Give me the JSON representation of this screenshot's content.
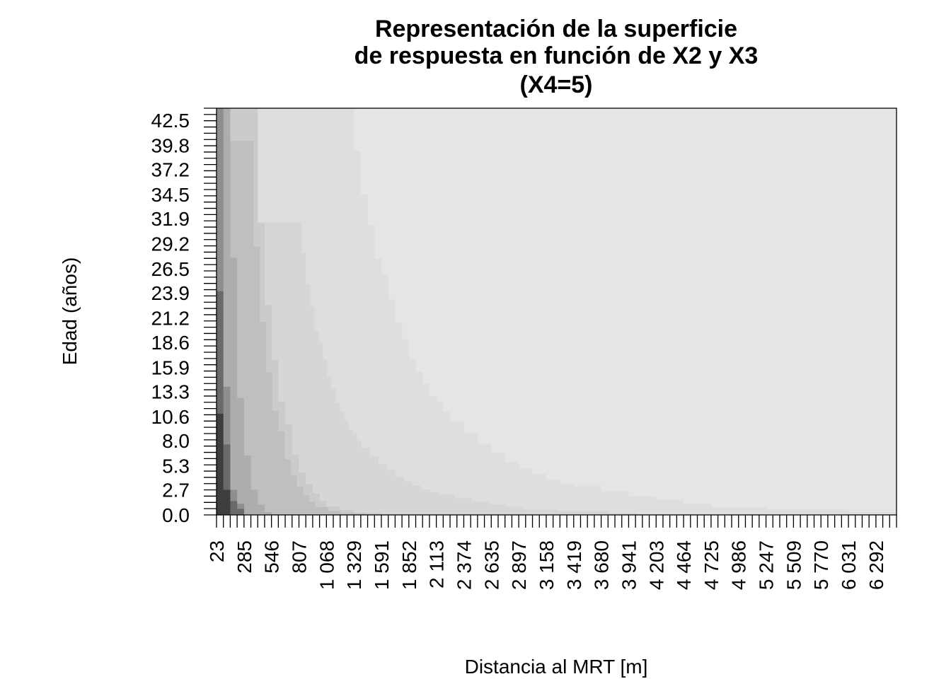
{
  "chart_data": {
    "type": "heatmap",
    "title": [
      "Representación de la superficie",
      "de respuesta en función de X2 y X3",
      "(X4=5)"
    ],
    "xlabel": "Distancia al MRT [m]",
    "ylabel": "Edad (años)",
    "x_tick_labels": [
      "23",
      "285",
      "546",
      "807",
      "1 068",
      "1 329",
      "1 591",
      "1 852",
      "2 113",
      "2 374",
      "2 635",
      "2 897",
      "3 158",
      "3 419",
      "3 680",
      "3 941",
      "4 203",
      "4 464",
      "4 725",
      "4 986",
      "5 247",
      "5 509",
      "5 770",
      "6 031",
      "6 292"
    ],
    "y_tick_labels": [
      "0.0",
      "2.7",
      "5.3",
      "8.0",
      "10.6",
      "13.3",
      "15.9",
      "18.6",
      "21.2",
      "23.9",
      "26.5",
      "29.2",
      "31.9",
      "34.5",
      "37.2",
      "39.8",
      "42.5"
    ],
    "xlim": [
      23,
      6488
    ],
    "ylim": [
      0,
      43.8
    ],
    "grid": false,
    "levels": [
      {
        "level": 1,
        "color": "#3e3e3e"
      },
      {
        "level": 2,
        "color": "#6a6a6a"
      },
      {
        "level": 3,
        "color": "#8e8e8e"
      },
      {
        "level": 4,
        "color": "#adadad"
      },
      {
        "level": 5,
        "color": "#bfbfbf"
      },
      {
        "level": 6,
        "color": "#cbcbcb"
      },
      {
        "level": 7,
        "color": "#d6d6d6"
      },
      {
        "level": 8,
        "color": "#dedede"
      },
      {
        "level": 9,
        "color": "#e5e5e5"
      }
    ],
    "level_boundaries": [
      {
        "between": "1-2",
        "points": [
          [
            23,
            10.9
          ],
          [
            88,
            10.9
          ],
          [
            88,
            2.7
          ],
          [
            154,
            2.7
          ],
          [
            154,
            0
          ]
        ]
      },
      {
        "between": "2-3",
        "points": [
          [
            88,
            43.8
          ],
          [
            88,
            13.8
          ],
          [
            154,
            13.8
          ],
          [
            154,
            2.7
          ],
          [
            219,
            2.7
          ],
          [
            219,
            1.2
          ],
          [
            285,
            1.2
          ],
          [
            285,
            0
          ]
        ]
      },
      {
        "between": "3-4",
        "points": [
          [
            154,
            43.8
          ],
          [
            154,
            27.7
          ],
          [
            154,
            27.7
          ],
          [
            219,
            27.7
          ],
          [
            219,
            12.6
          ],
          [
            285,
            12.6
          ],
          [
            285,
            6.4
          ],
          [
            350,
            6.4
          ],
          [
            350,
            2.7
          ],
          [
            415,
            2.7
          ],
          [
            415,
            1.1
          ],
          [
            481,
            1.1
          ],
          [
            481,
            0.3
          ],
          [
            546,
            0.3
          ],
          [
            546,
            0
          ]
        ]
      },
      {
        "between": "4-5",
        "points": [
          [
            415,
            43.8
          ],
          [
            415,
            31.4
          ],
          [
            481,
            31.4
          ],
          [
            481,
            22.6
          ],
          [
            546,
            22.6
          ],
          [
            546,
            16.7
          ],
          [
            611,
            16.7
          ],
          [
            611,
            12.2
          ],
          [
            677,
            12.2
          ],
          [
            677,
            9.8
          ],
          [
            742,
            9.8
          ],
          [
            742,
            6.5
          ],
          [
            807,
            6.5
          ],
          [
            807,
            4.6
          ],
          [
            872,
            4.6
          ],
          [
            872,
            3.3
          ],
          [
            938,
            3.3
          ],
          [
            938,
            2.3
          ],
          [
            1003,
            2.3
          ],
          [
            1003,
            1.5
          ],
          [
            1068,
            1.5
          ],
          [
            1068,
            0.9
          ],
          [
            1198,
            0.9
          ],
          [
            1198,
            0.5
          ],
          [
            1329,
            0.5
          ],
          [
            1329,
            0.2
          ],
          [
            1591,
            0.2
          ],
          [
            1591,
            0
          ]
        ]
      },
      {
        "between": "5-6",
        "points": [
          [
            1263,
            43.8
          ],
          [
            1263,
            43.8
          ]
        ]
      },
      {
        "between": "8-9",
        "points": [
          [
            1329,
            43.8
          ],
          [
            1329,
            39.2
          ],
          [
            1394,
            39.2
          ],
          [
            1394,
            34.5
          ],
          [
            1460,
            34.5
          ],
          [
            1460,
            31.2
          ],
          [
            1525,
            31.2
          ],
          [
            1525,
            27.6
          ],
          [
            1591,
            27.6
          ],
          [
            1591,
            25.9
          ],
          [
            1656,
            25.9
          ],
          [
            1656,
            23.2
          ],
          [
            1721,
            23.2
          ],
          [
            1721,
            20.7
          ],
          [
            1786,
            20.7
          ],
          [
            1786,
            18.9
          ],
          [
            1852,
            18.9
          ],
          [
            1852,
            16.8
          ],
          [
            1917,
            16.8
          ],
          [
            1917,
            15.4
          ],
          [
            1982,
            15.4
          ],
          [
            1982,
            14.1
          ],
          [
            2048,
            14.1
          ],
          [
            2048,
            12.8
          ],
          [
            2113,
            12.8
          ],
          [
            2113,
            12.2
          ],
          [
            2178,
            12.2
          ],
          [
            2178,
            11.1
          ],
          [
            2244,
            11.1
          ],
          [
            2244,
            10.0
          ],
          [
            2374,
            10.0
          ],
          [
            2374,
            8.8
          ],
          [
            2505,
            8.8
          ],
          [
            2505,
            7.6
          ],
          [
            2635,
            7.6
          ],
          [
            2635,
            6.7
          ],
          [
            2766,
            6.7
          ],
          [
            2766,
            5.7
          ],
          [
            2897,
            5.7
          ],
          [
            2897,
            5.0
          ],
          [
            3027,
            5.0
          ],
          [
            3027,
            4.4
          ],
          [
            3158,
            4.4
          ],
          [
            3158,
            3.8
          ],
          [
            3289,
            3.8
          ],
          [
            3289,
            3.4
          ],
          [
            3419,
            3.4
          ],
          [
            3419,
            3.1
          ],
          [
            3680,
            3.1
          ],
          [
            3680,
            2.5
          ],
          [
            3941,
            2.5
          ],
          [
            3941,
            2.0
          ],
          [
            4203,
            2.0
          ],
          [
            4203,
            1.6
          ],
          [
            4464,
            1.6
          ],
          [
            4464,
            1.2
          ],
          [
            4725,
            1.2
          ],
          [
            4725,
            0.8
          ],
          [
            5247,
            0.8
          ],
          [
            5247,
            0.6
          ],
          [
            6031,
            0.6
          ],
          [
            6031,
            0.3
          ],
          [
            6488,
            0.3
          ]
        ]
      }
    ]
  }
}
